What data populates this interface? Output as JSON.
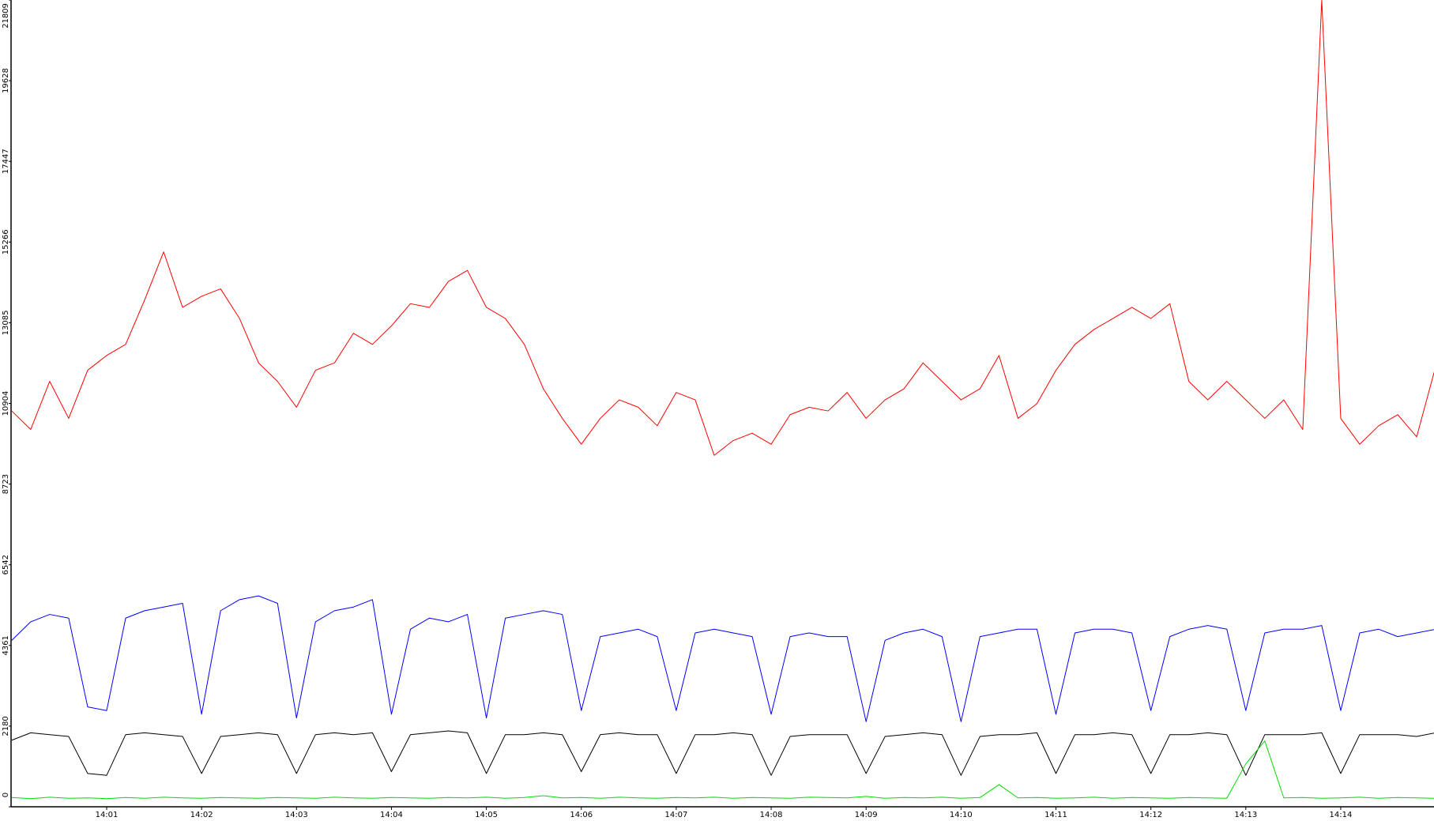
{
  "chart_data": {
    "type": "line",
    "x": [
      0,
      0.2,
      0.4,
      0.6,
      0.8,
      1,
      1.2,
      1.4,
      1.6,
      1.8,
      2,
      2.2,
      2.4,
      2.6,
      2.8,
      3,
      3.2,
      3.4,
      3.6,
      3.8,
      4,
      4.2,
      4.4,
      4.6,
      4.8,
      5,
      5.2,
      5.4,
      5.6,
      5.8,
      6,
      6.2,
      6.4,
      6.6,
      6.8,
      7,
      7.2,
      7.4,
      7.6,
      7.8,
      8,
      8.2,
      8.4,
      8.6,
      8.8,
      9,
      9.2,
      9.4,
      9.6,
      9.8,
      10,
      10.2,
      10.4,
      10.6,
      10.8,
      11,
      11.2,
      11.4,
      11.6,
      11.8,
      12,
      12.2,
      12.4,
      12.6,
      12.8,
      13,
      13.2,
      13.4,
      13.6,
      13.8,
      14,
      14.2,
      14.4,
      14.6,
      14.8,
      15
    ],
    "xlim": [
      0,
      15
    ],
    "xticks": [
      {
        "value": 1,
        "label": "14:01"
      },
      {
        "value": 2,
        "label": "14:02"
      },
      {
        "value": 3,
        "label": "14:03"
      },
      {
        "value": 4,
        "label": "14:04"
      },
      {
        "value": 5,
        "label": "14:05"
      },
      {
        "value": 6,
        "label": "14:06"
      },
      {
        "value": 7,
        "label": "14:07"
      },
      {
        "value": 8,
        "label": "14:08"
      },
      {
        "value": 9,
        "label": "14:09"
      },
      {
        "value": 10,
        "label": "14:10"
      },
      {
        "value": 11,
        "label": "14:11"
      },
      {
        "value": 12,
        "label": "14:12"
      },
      {
        "value": 13,
        "label": "14:13"
      },
      {
        "value": 14,
        "label": "14:14"
      }
    ],
    "ylim": [
      0,
      21809
    ],
    "yticks": [
      0,
      2180,
      4361,
      6542,
      8723,
      10904,
      13085,
      15266,
      17447,
      19628,
      21809
    ],
    "series": [
      {
        "color": "#ff0000",
        "values": [
          10700,
          10200,
          11500,
          10500,
          11800,
          12200,
          12500,
          13700,
          15000,
          13500,
          13800,
          14000,
          13200,
          12000,
          11500,
          10800,
          11800,
          12000,
          12800,
          12500,
          13000,
          13600,
          13500,
          14200,
          14500,
          13500,
          13200,
          12500,
          11300,
          10500,
          9800,
          10500,
          11000,
          10800,
          10300,
          11200,
          11000,
          9500,
          9900,
          10100,
          9800,
          10600,
          10800,
          10700,
          11200,
          10500,
          11000,
          11300,
          12000,
          11500,
          11000,
          11300,
          12200,
          10500,
          10900,
          11800,
          12500,
          12900,
          13200,
          13500,
          13200,
          13600,
          11500,
          11000,
          11500,
          11000,
          10500,
          11000,
          10200,
          21809,
          10500,
          9800,
          10300,
          10600,
          10000,
          11900
        ]
      },
      {
        "color": "#0000ff",
        "values": [
          4500,
          5000,
          5200,
          5100,
          2700,
          2600,
          5100,
          5300,
          5400,
          5500,
          2500,
          5300,
          5600,
          5700,
          5500,
          2400,
          5000,
          5300,
          5400,
          5600,
          2500,
          4800,
          5100,
          5000,
          5200,
          2400,
          5100,
          5200,
          5300,
          5200,
          2600,
          4600,
          4700,
          4800,
          4600,
          2600,
          4700,
          4800,
          4700,
          4600,
          2500,
          4600,
          4700,
          4600,
          4600,
          2300,
          4500,
          4700,
          4800,
          4600,
          2300,
          4600,
          4700,
          4800,
          4800,
          2500,
          4700,
          4800,
          4800,
          4700,
          2600,
          4600,
          4800,
          4900,
          4800,
          2600,
          4700,
          4800,
          4800,
          4900,
          2600,
          4700,
          4800,
          4600,
          4700,
          4800
        ]
      },
      {
        "color": "#000000",
        "values": [
          1800,
          2000,
          1950,
          1900,
          900,
          850,
          1950,
          2000,
          1950,
          1900,
          900,
          1900,
          1950,
          2000,
          1950,
          900,
          1950,
          2000,
          1950,
          2000,
          950,
          1950,
          2000,
          2050,
          2000,
          900,
          1950,
          1950,
          2000,
          1950,
          950,
          1950,
          2000,
          1950,
          1950,
          900,
          1950,
          1950,
          2000,
          1950,
          850,
          1900,
          1950,
          1950,
          1950,
          900,
          1900,
          1950,
          2000,
          1950,
          850,
          1900,
          1950,
          1950,
          2000,
          900,
          1950,
          1950,
          2000,
          1950,
          900,
          1950,
          1950,
          2000,
          1950,
          850,
          1950,
          1950,
          1950,
          2000,
          900,
          1950,
          1950,
          1950,
          1900,
          2000
        ]
      },
      {
        "color": "#00dd00",
        "values": [
          250,
          220,
          260,
          230,
          240,
          220,
          250,
          230,
          260,
          240,
          230,
          250,
          240,
          230,
          250,
          240,
          230,
          260,
          240,
          230,
          250,
          240,
          230,
          250,
          240,
          260,
          230,
          250,
          300,
          240,
          250,
          230,
          260,
          240,
          230,
          250,
          240,
          260,
          230,
          250,
          240,
          230,
          260,
          250,
          240,
          280,
          230,
          250,
          240,
          260,
          230,
          250,
          600,
          240,
          250,
          230,
          240,
          260,
          230,
          250,
          240,
          230,
          250,
          240,
          230,
          1160,
          1780,
          240,
          250,
          230,
          240,
          260,
          230,
          250,
          240,
          230
        ]
      }
    ]
  }
}
